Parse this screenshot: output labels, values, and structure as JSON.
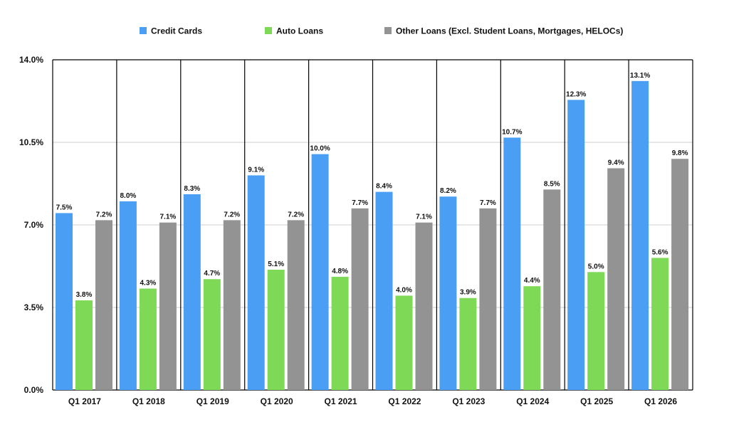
{
  "chart_data": {
    "type": "bar",
    "categories": [
      "Q1 2017",
      "Q1 2018",
      "Q1 2019",
      "Q1 2020",
      "Q1 2021",
      "Q1 2022",
      "Q1 2023",
      "Q1 2024",
      "Q1 2025",
      "Q1 2026"
    ],
    "series": [
      {
        "name": "Credit Cards",
        "color": "#4a9ff5",
        "values": [
          7.5,
          8.0,
          8.3,
          9.1,
          10.0,
          8.4,
          8.2,
          10.7,
          12.3,
          13.1
        ],
        "labels": [
          "7.5%",
          "8.0%",
          "8.3%",
          "9.1%",
          "10.0%",
          "8.4%",
          "8.2%",
          "10.7%",
          "12.3%",
          "13.1%"
        ]
      },
      {
        "name": "Auto Loans",
        "color": "#7ed957",
        "values": [
          3.8,
          4.3,
          4.7,
          5.1,
          4.8,
          4.0,
          3.9,
          4.4,
          5.0,
          5.6
        ],
        "labels": [
          "3.8%",
          "4.3%",
          "4.7%",
          "5.1%",
          "4.8%",
          "4.0%",
          "3.9%",
          "4.4%",
          "5.0%",
          "5.6%"
        ]
      },
      {
        "name": "Other Loans (Excl. Student Loans, Mortgages, HELOCs)",
        "color": "#939393",
        "values": [
          7.2,
          7.1,
          7.2,
          7.2,
          7.7,
          7.1,
          7.7,
          8.5,
          9.4,
          9.8
        ],
        "labels": [
          "7.2%",
          "7.1%",
          "7.2%",
          "7.2%",
          "7.7%",
          "7.1%",
          "7.7%",
          "8.5%",
          "9.4%",
          "9.8%"
        ]
      }
    ],
    "yticks": [
      0,
      3.5,
      7,
      10.5,
      14
    ],
    "ytick_labels": [
      "0.0%",
      "3.5%",
      "7.0%",
      "10.5%",
      "14.0%"
    ],
    "ylim": [
      0,
      14
    ],
    "legend_position": "top",
    "grid": true
  }
}
